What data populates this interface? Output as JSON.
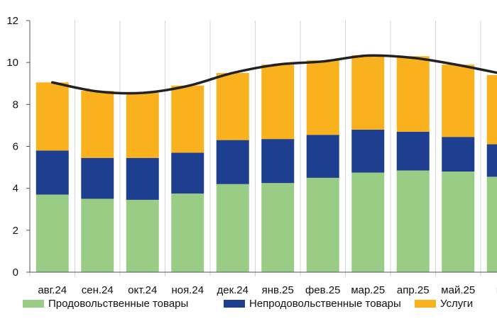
{
  "chart_data": {
    "type": "bar",
    "stacked": true,
    "categories": [
      "авг.24",
      "сен.24",
      "окт.24",
      "ноя.24",
      "дек.24",
      "янв.25",
      "фев.25",
      "мар.25",
      "апр.25",
      "май.25",
      "ию"
    ],
    "series": [
      {
        "name": "Продовольственные товары",
        "color": "#99cc85",
        "values": [
          3.7,
          3.5,
          3.45,
          3.75,
          4.2,
          4.25,
          4.5,
          4.75,
          4.85,
          4.8,
          4.55
        ]
      },
      {
        "name": "Непродовольственные товары",
        "color": "#1e3f8f",
        "values": [
          2.1,
          1.95,
          2.0,
          1.95,
          2.1,
          2.1,
          2.05,
          2.05,
          1.85,
          1.65,
          1.55
        ]
      },
      {
        "name": "Услуги",
        "color": "#f9b21d",
        "values": [
          3.25,
          3.2,
          3.1,
          3.2,
          3.2,
          3.55,
          3.55,
          3.55,
          3.6,
          3.45,
          3.3
        ]
      }
    ],
    "line": {
      "color": "#222222",
      "values": [
        9.05,
        8.62,
        8.55,
        8.88,
        9.5,
        9.9,
        10.05,
        10.33,
        10.22,
        9.88,
        9.45
      ]
    },
    "ylim": [
      0,
      12
    ],
    "yticks": [
      0,
      2,
      4,
      6,
      8,
      10,
      12
    ],
    "grid": "vertical",
    "legend_position": "bottom"
  }
}
